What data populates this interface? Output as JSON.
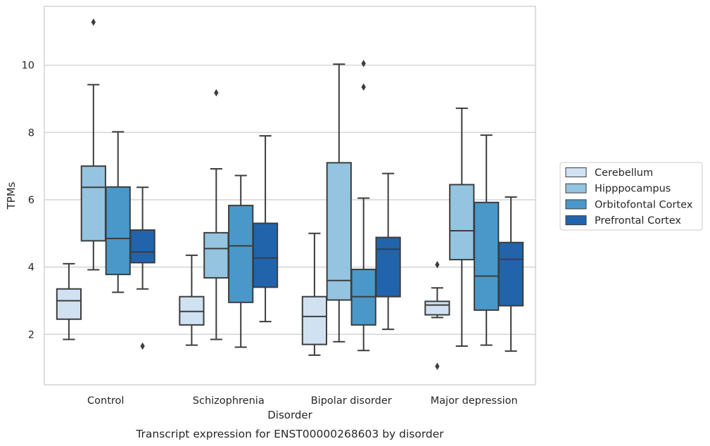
{
  "chart_data": {
    "type": "boxplot",
    "xlabel": "Disorder",
    "ylabel": "TPMs",
    "caption": "Transcript expression for ENST00000268603 by disorder",
    "ylim": [
      0.5,
      11.75
    ],
    "yticks": [
      2,
      4,
      6,
      8,
      10
    ],
    "grid": "horizontal",
    "legend_position": "right",
    "categories": [
      "Control",
      "Schizophrenia",
      "Bipolar disorder",
      "Major depression"
    ],
    "series": [
      {
        "name": "Cerebellum",
        "color": "#d0e1f2",
        "boxes": [
          {
            "whisker_low": 1.85,
            "q1": 2.45,
            "median": 3.0,
            "q3": 3.35,
            "whisker_high": 4.1,
            "outliers": []
          },
          {
            "whisker_low": 1.68,
            "q1": 2.28,
            "median": 2.68,
            "q3": 3.12,
            "whisker_high": 4.35,
            "outliers": []
          },
          {
            "whisker_low": 1.38,
            "q1": 1.7,
            "median": 2.53,
            "q3": 3.12,
            "whisker_high": 5.0,
            "outliers": []
          },
          {
            "whisker_low": 2.5,
            "q1": 2.58,
            "median": 2.87,
            "q3": 2.98,
            "whisker_high": 3.38,
            "outliers": [
              4.07,
              1.05
            ]
          }
        ]
      },
      {
        "name": "Hipppocampus",
        "color": "#94c4df",
        "boxes": [
          {
            "whisker_low": 3.92,
            "q1": 4.78,
            "median": 6.37,
            "q3": 7.0,
            "whisker_high": 9.42,
            "outliers": [
              11.28
            ]
          },
          {
            "whisker_low": 1.85,
            "q1": 3.68,
            "median": 4.55,
            "q3": 5.02,
            "whisker_high": 6.92,
            "outliers": [
              9.18
            ]
          },
          {
            "whisker_low": 1.78,
            "q1": 3.02,
            "median": 3.6,
            "q3": 7.1,
            "whisker_high": 10.03,
            "outliers": []
          },
          {
            "whisker_low": 1.65,
            "q1": 4.22,
            "median": 5.08,
            "q3": 6.45,
            "whisker_high": 8.72,
            "outliers": []
          }
        ]
      },
      {
        "name": "Orbitofontal Cortex",
        "color": "#4a98c9",
        "boxes": [
          {
            "whisker_low": 3.25,
            "q1": 3.78,
            "median": 4.85,
            "q3": 6.38,
            "whisker_high": 8.02,
            "outliers": []
          },
          {
            "whisker_low": 1.62,
            "q1": 2.95,
            "median": 4.63,
            "q3": 5.83,
            "whisker_high": 6.72,
            "outliers": []
          },
          {
            "whisker_low": 1.52,
            "q1": 2.28,
            "median": 3.12,
            "q3": 3.93,
            "whisker_high": 6.05,
            "outliers": [
              10.05,
              9.35
            ]
          },
          {
            "whisker_low": 1.68,
            "q1": 2.72,
            "median": 3.73,
            "q3": 5.92,
            "whisker_high": 7.92,
            "outliers": []
          }
        ]
      },
      {
        "name": "Prefrontal Cortex",
        "color": "#2164ab",
        "boxes": [
          {
            "whisker_low": 3.35,
            "q1": 4.13,
            "median": 4.45,
            "q3": 5.1,
            "whisker_high": 6.37,
            "outliers": [
              1.65
            ]
          },
          {
            "whisker_low": 2.38,
            "q1": 3.4,
            "median": 4.27,
            "q3": 5.3,
            "whisker_high": 7.9,
            "outliers": []
          },
          {
            "whisker_low": 2.15,
            "q1": 3.12,
            "median": 4.53,
            "q3": 4.88,
            "whisker_high": 6.78,
            "outliers": []
          },
          {
            "whisker_low": 1.5,
            "q1": 2.85,
            "median": 4.23,
            "q3": 4.73,
            "whisker_high": 6.08,
            "outliers": []
          }
        ]
      }
    ]
  }
}
